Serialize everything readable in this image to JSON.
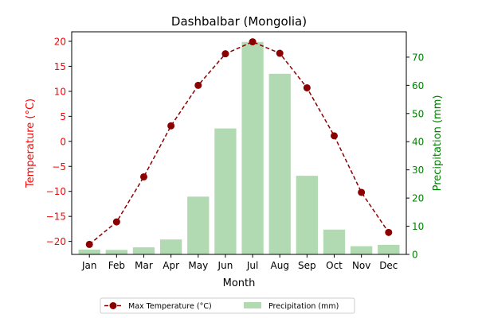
{
  "chart_data": {
    "type": "bar",
    "title": "Dashbalbar (Mongolia)",
    "xlabel": "Month",
    "categories": [
      "Jan",
      "Feb",
      "Mar",
      "Apr",
      "May",
      "Jun",
      "Jul",
      "Aug",
      "Sep",
      "Oct",
      "Nov",
      "Dec"
    ],
    "series": [
      {
        "name": "Max Temperature (°C)",
        "type": "line",
        "axis": "left",
        "color": "#8b0000",
        "values": [
          -20.6,
          -16.1,
          -7.1,
          3.1,
          11.2,
          17.5,
          19.9,
          17.6,
          10.7,
          1.1,
          -10.2,
          -18.2
        ]
      },
      {
        "name": "Precipitation (mm)",
        "type": "bar",
        "axis": "right",
        "color": "#b2dab2",
        "values": [
          1.7,
          1.6,
          2.5,
          5.3,
          20.5,
          44.7,
          75.4,
          64.1,
          27.9,
          8.8,
          2.9,
          3.4
        ]
      }
    ],
    "y_left": {
      "label": "Temperature (°C)",
      "color": "#ff0000",
      "ticks": [
        -20,
        -15,
        -10,
        -5,
        0,
        5,
        10,
        15,
        20
      ],
      "ylim": [
        -22.6,
        21.9
      ]
    },
    "y_right": {
      "label": "Precipitation (mm)",
      "color": "#008000",
      "ticks": [
        0,
        10,
        20,
        30,
        40,
        50,
        60,
        70
      ],
      "ylim": [
        0,
        79
      ]
    },
    "grid": false,
    "legend": {
      "position": "bottom-center",
      "columns": 2
    }
  }
}
